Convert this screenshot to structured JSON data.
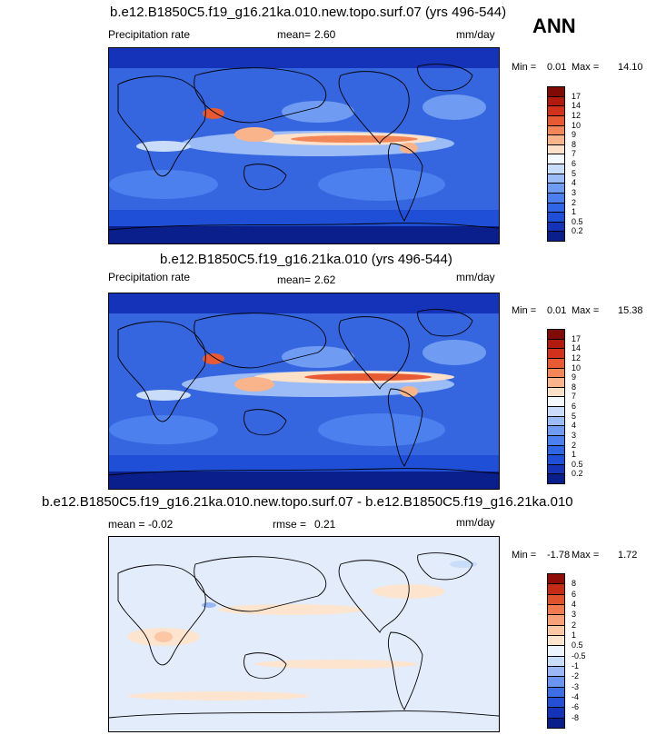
{
  "season": "ANN",
  "chart_data": [
    {
      "type": "heatmap",
      "title": "b.e12.B1850C5.f19_g16.21ka.010.new.topo.surf.07 (yrs 496-544)",
      "variable": "Precipitation rate",
      "mean_label": "mean=",
      "mean": "2.60",
      "units": "mm/day",
      "min_label": "Min =",
      "min": "0.01",
      "max_label": "Max =",
      "max": "14.10",
      "colorbar": {
        "levels": [
          "0.2",
          "0.5",
          "1",
          "2",
          "3",
          "4",
          "5",
          "6",
          "7",
          "8",
          "9",
          "10",
          "12",
          "14",
          "17"
        ],
        "colors": [
          "#0a1f8c",
          "#1533b8",
          "#1f4fd6",
          "#2f66e6",
          "#4b80ee",
          "#6f9cf2",
          "#9bbcf6",
          "#c9dcfa",
          "#f4f8ff",
          "#fde0c8",
          "#f9b48c",
          "#f38659",
          "#e85a33",
          "#d2321c",
          "#b01a0f",
          "#800a05"
        ]
      }
    },
    {
      "type": "heatmap",
      "title": "b.e12.B1850C5.f19_g16.21ka.010 (yrs 496-544)",
      "variable": "Precipitation rate",
      "mean_label": "mean=",
      "mean": "2.62",
      "units": "mm/day",
      "min_label": "Min =",
      "min": "0.01",
      "max_label": "Max =",
      "max": "15.38",
      "colorbar": {
        "levels": [
          "0.2",
          "0.5",
          "1",
          "2",
          "3",
          "4",
          "5",
          "6",
          "7",
          "8",
          "9",
          "10",
          "12",
          "14",
          "17"
        ],
        "colors": [
          "#0a1f8c",
          "#1533b8",
          "#1f4fd6",
          "#2f66e6",
          "#4b80ee",
          "#6f9cf2",
          "#9bbcf6",
          "#c9dcfa",
          "#f4f8ff",
          "#fde0c8",
          "#f9b48c",
          "#f38659",
          "#e85a33",
          "#d2321c",
          "#b01a0f",
          "#800a05"
        ]
      }
    },
    {
      "type": "heatmap",
      "title": "b.e12.B1850C5.f19_g16.21ka.010.new.topo.surf.07 - b.e12.B1850C5.f19_g16.21ka.010",
      "mean_label": "mean =",
      "mean": "-0.02",
      "rmse_label": "rmse =",
      "rmse": "0.21",
      "units": "mm/day",
      "min_label": "Min =",
      "min": "-1.78",
      "max_label": "Max =",
      "max": "1.72",
      "colorbar": {
        "levels": [
          "-8",
          "-6",
          "-4",
          "-3",
          "-2",
          "-1",
          "-0.5",
          "0.5",
          "1",
          "2",
          "3",
          "4",
          "6",
          "8"
        ],
        "colors": [
          "#0a1f8c",
          "#1533b8",
          "#2550d6",
          "#3d6ee6",
          "#6a94f0",
          "#9ab8f5",
          "#c9dcfa",
          "#eef4fd",
          "#fde4cf",
          "#fbc7a4",
          "#f6a178",
          "#ef7b4f",
          "#e0522c",
          "#c42c17",
          "#8f0d06"
        ]
      }
    }
  ]
}
